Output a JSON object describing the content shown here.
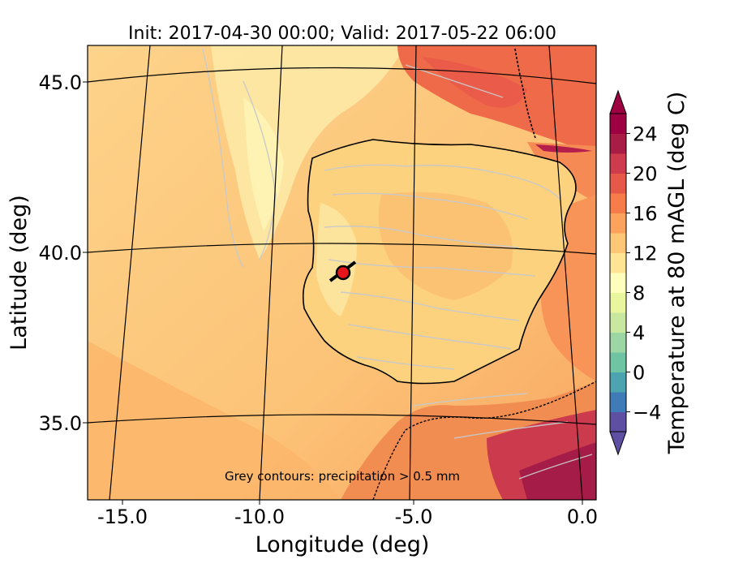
{
  "title": "Init: 2017-04-30 00:00; Valid: 2017-05-22 06:00",
  "axes": {
    "xlabel": "Longitude (deg)",
    "ylabel": "Latitude (deg)",
    "xticks": [
      "-15.0",
      "-10.0",
      "-5.0",
      "0.0"
    ],
    "yticks": [
      "45.0",
      "40.0",
      "35.0"
    ]
  },
  "annotation": "Grey contours: precipitation  > 0.5 mm",
  "colorbar": {
    "label": "Temperature at 80 mAGL (deg C)",
    "ticks": [
      "24",
      "20",
      "16",
      "12",
      "8",
      "4",
      "0",
      "−4"
    ],
    "range": [
      -6,
      26
    ],
    "colors": [
      "#5e4fa2",
      "#3f7bb6",
      "#4da4b1",
      "#6fc4a4",
      "#9cd6a4",
      "#c7e89e",
      "#eaf69e",
      "#fefebd",
      "#fee493",
      "#fdc776",
      "#fba35d",
      "#f67c4a",
      "#e65848",
      "#cf3b4c",
      "#a81c46",
      "#9e0142"
    ]
  },
  "marker": {
    "label_hidden": "",
    "color": "#e8141c"
  }
}
